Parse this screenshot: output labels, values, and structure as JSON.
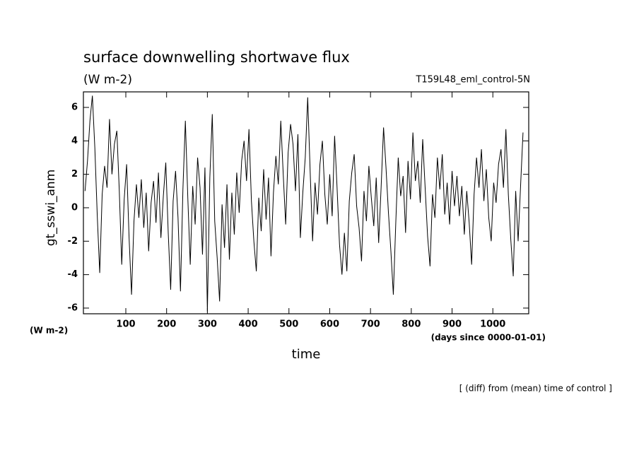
{
  "chart_data": {
    "type": "line",
    "title": "surface downwelling shortwave flux",
    "subtitle": "(W m-2)",
    "run_label": "T159L48_eml_control-5N",
    "ylabel": "gt_sswi_anm",
    "xlabel": "time",
    "y_unit_label": "(W m-2)",
    "x_unit_label": "(days since 0000-01-01)",
    "footnote": "[ (diff) from (mean) time of control ]",
    "xlim": [
      -4,
      1088
    ],
    "ylim": [
      -6.34,
      6.93
    ],
    "xticks": [
      100,
      200,
      300,
      400,
      500,
      600,
      700,
      800,
      900,
      1000
    ],
    "yticks": [
      -6,
      -4,
      -2,
      0,
      2,
      4,
      6
    ],
    "color": "#000000",
    "x": [
      0,
      6,
      12,
      18,
      24,
      30,
      36,
      42,
      48,
      54,
      60,
      66,
      72,
      78,
      84,
      90,
      96,
      102,
      108,
      114,
      120,
      126,
      132,
      138,
      144,
      150,
      156,
      162,
      168,
      174,
      180,
      186,
      192,
      198,
      204,
      210,
      216,
      222,
      228,
      234,
      240,
      246,
      252,
      258,
      264,
      270,
      276,
      282,
      288,
      294,
      300,
      306,
      312,
      318,
      324,
      330,
      336,
      342,
      348,
      354,
      360,
      366,
      372,
      378,
      384,
      390,
      396,
      402,
      408,
      414,
      420,
      426,
      432,
      438,
      444,
      450,
      456,
      462,
      468,
      474,
      480,
      486,
      492,
      498,
      504,
      510,
      516,
      522,
      528,
      534,
      540,
      546,
      552,
      558,
      564,
      570,
      576,
      582,
      588,
      594,
      600,
      606,
      612,
      618,
      624,
      630,
      636,
      642,
      648,
      654,
      660,
      666,
      672,
      678,
      684,
      690,
      696,
      702,
      708,
      714,
      720,
      726,
      732,
      738,
      744,
      750,
      756,
      762,
      768,
      774,
      780,
      786,
      792,
      798,
      804,
      810,
      816,
      822,
      828,
      834,
      840,
      846,
      852,
      858,
      864,
      870,
      876,
      882,
      888,
      894,
      900,
      906,
      912,
      918,
      924,
      930,
      936,
      942,
      948,
      954,
      960,
      966,
      972,
      978,
      984,
      990,
      996,
      1002,
      1008,
      1014,
      1020,
      1026,
      1032,
      1038,
      1044,
      1050,
      1056,
      1062,
      1068,
      1074
    ],
    "values": [
      1.0,
      2.8,
      5.2,
      6.7,
      3.6,
      -0.5,
      -3.9,
      0.8,
      2.5,
      1.2,
      5.3,
      2.0,
      3.8,
      4.6,
      1.0,
      -3.4,
      0.5,
      2.6,
      -1.8,
      -5.2,
      -0.8,
      1.4,
      -0.6,
      1.7,
      -1.2,
      0.9,
      -2.6,
      0.3,
      1.6,
      -0.9,
      2.1,
      -1.8,
      0.7,
      2.7,
      -1.5,
      -4.9,
      0.4,
      2.2,
      -0.6,
      -5.0,
      1.1,
      5.2,
      0.6,
      -3.4,
      1.3,
      -1.0,
      3.0,
      1.2,
      -2.8,
      2.4,
      -6.2,
      1.8,
      5.6,
      -0.8,
      -3.0,
      -5.6,
      0.2,
      -2.4,
      1.4,
      -3.1,
      0.9,
      -1.6,
      2.1,
      -0.3,
      2.8,
      4.0,
      1.6,
      4.7,
      0.4,
      -2.0,
      -3.8,
      0.6,
      -1.4,
      2.3,
      -0.7,
      1.8,
      -2.9,
      0.9,
      3.1,
      1.4,
      5.2,
      2.0,
      -1.0,
      3.3,
      5.0,
      3.8,
      1.0,
      4.4,
      -1.8,
      0.9,
      3.0,
      6.6,
      2.2,
      -2.0,
      1.5,
      -0.4,
      2.6,
      4.0,
      0.8,
      -1.0,
      2.0,
      -0.5,
      4.3,
      1.2,
      -2.2,
      -4.0,
      -1.5,
      -3.8,
      0.4,
      2.1,
      3.2,
      0.1,
      -1.2,
      -3.2,
      1.0,
      -0.8,
      2.5,
      0.6,
      -1.1,
      1.8,
      -2.1,
      1.2,
      4.8,
      2.4,
      -0.3,
      -2.6,
      -5.2,
      -0.9,
      3.0,
      0.7,
      1.9,
      -1.5,
      2.8,
      0.5,
      4.5,
      1.6,
      2.8,
      0.3,
      4.1,
      1.2,
      -1.7,
      -3.5,
      0.8,
      -0.6,
      3.0,
      1.1,
      3.2,
      -0.4,
      1.5,
      -1.0,
      2.2,
      0.1,
      1.9,
      -0.5,
      1.3,
      -1.6,
      1.0,
      -0.9,
      -3.4,
      0.8,
      3.0,
      1.2,
      3.5,
      0.4,
      2.3,
      -0.6,
      -2.0,
      1.5,
      0.3,
      2.6,
      3.5,
      1.2,
      4.7,
      0.8,
      -1.9,
      -4.1,
      1.0,
      -2.0,
      1.3,
      4.5
    ]
  }
}
